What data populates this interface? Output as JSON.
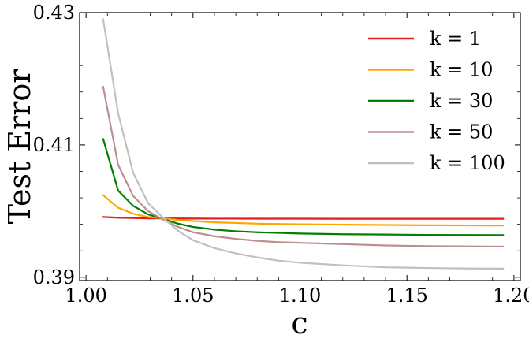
{
  "chart_data": {
    "type": "line",
    "xlabel": "c",
    "ylabel": "Test Error",
    "xlim": [
      0.997,
      1.203
    ],
    "ylim": [
      0.3895,
      0.43
    ],
    "xticks": [
      1.0,
      1.05,
      1.1,
      1.15,
      1.2
    ],
    "xtick_labels": [
      "1.00",
      "1.05",
      "1.10",
      "1.15",
      "1.20"
    ],
    "yticks": [
      0.39,
      0.41,
      0.43
    ],
    "ytick_labels": [
      "0.39",
      "0.41",
      "0.43"
    ],
    "grid": false,
    "legend": "top-right",
    "x": [
      1.008,
      1.015,
      1.022,
      1.029,
      1.036,
      1.043,
      1.05,
      1.06,
      1.07,
      1.08,
      1.09,
      1.1,
      1.12,
      1.14,
      1.16,
      1.18,
      1.195
    ],
    "series": [
      {
        "name": "k = 1",
        "color": "#e41a1c",
        "values": [
          0.3991,
          0.399,
          0.39895,
          0.3989,
          0.3989,
          0.39888,
          0.39887,
          0.39886,
          0.39886,
          0.39885,
          0.39885,
          0.39885,
          0.39884,
          0.39884,
          0.39884,
          0.39884,
          0.39884
        ]
      },
      {
        "name": "k = 10",
        "color": "#ffa500",
        "values": [
          0.4024,
          0.4005,
          0.3996,
          0.3991,
          0.3989,
          0.39865,
          0.3985,
          0.3983,
          0.3982,
          0.3981,
          0.39805,
          0.398,
          0.39795,
          0.3979,
          0.39785,
          0.39783,
          0.39782
        ]
      },
      {
        "name": "k = 30",
        "color": "#008000",
        "values": [
          0.4109,
          0.4031,
          0.4008,
          0.3995,
          0.3988,
          0.3981,
          0.3976,
          0.3972,
          0.39695,
          0.3968,
          0.3967,
          0.3966,
          0.3965,
          0.39645,
          0.3964,
          0.39638,
          0.39637
        ]
      },
      {
        "name": "k = 50",
        "color": "#bc8f8f",
        "values": [
          0.4188,
          0.407,
          0.4023,
          0.4,
          0.3987,
          0.3976,
          0.3968,
          0.3962,
          0.3958,
          0.3955,
          0.3953,
          0.3952,
          0.395,
          0.3948,
          0.3947,
          0.39465,
          0.39463
        ]
      },
      {
        "name": "k = 100",
        "color": "#c0c0c0",
        "values": [
          0.429,
          0.4148,
          0.4058,
          0.4012,
          0.399,
          0.397,
          0.3956,
          0.3944,
          0.3936,
          0.393,
          0.3925,
          0.3922,
          0.3918,
          0.3915,
          0.3914,
          0.39132,
          0.3913
        ]
      }
    ]
  }
}
